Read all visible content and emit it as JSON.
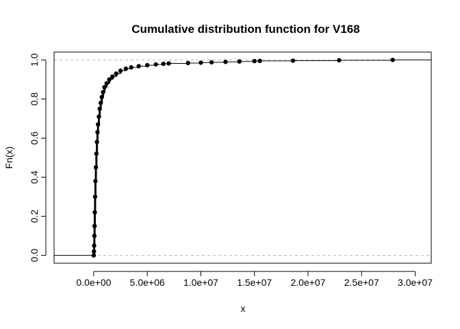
{
  "chart_data": {
    "type": "scatter",
    "subtype": "ecdf-step",
    "title": "Cumulative distribution function for V168",
    "xlabel": "x",
    "ylabel": "Fn(x)",
    "xlim": [
      -3700000,
      31500000
    ],
    "ylim": [
      -0.04,
      1.04
    ],
    "xticks": [
      0,
      5000000,
      10000000,
      15000000,
      20000000,
      25000000,
      30000000
    ],
    "xtick_labels": [
      "0.0e+00",
      "5.0e+06",
      "1.0e+07",
      "1.5e+07",
      "2.0e+07",
      "2.5e+07",
      "3.0e+07"
    ],
    "yticks": [
      0.0,
      0.2,
      0.4,
      0.6,
      0.8,
      1.0
    ],
    "ytick_labels": [
      "0.0",
      "0.2",
      "0.4",
      "0.6",
      "0.8",
      "1.0"
    ],
    "reference_lines": [
      0,
      1
    ],
    "points": [
      [
        0,
        0.0
      ],
      [
        20000,
        0.02
      ],
      [
        40000,
        0.05
      ],
      [
        60000,
        0.1
      ],
      [
        80000,
        0.15
      ],
      [
        100000,
        0.22
      ],
      [
        130000,
        0.3
      ],
      [
        160000,
        0.38
      ],
      [
        200000,
        0.45
      ],
      [
        250000,
        0.52
      ],
      [
        300000,
        0.58
      ],
      [
        350000,
        0.63
      ],
      [
        400000,
        0.67
      ],
      [
        480000,
        0.71
      ],
      [
        560000,
        0.75
      ],
      [
        650000,
        0.78
      ],
      [
        750000,
        0.81
      ],
      [
        870000,
        0.835
      ],
      [
        1000000,
        0.86
      ],
      [
        1200000,
        0.88
      ],
      [
        1450000,
        0.9
      ],
      [
        1750000,
        0.915
      ],
      [
        2100000,
        0.93
      ],
      [
        2500000,
        0.945
      ],
      [
        3000000,
        0.955
      ],
      [
        3500000,
        0.962
      ],
      [
        4200000,
        0.968
      ],
      [
        5000000,
        0.973
      ],
      [
        5800000,
        0.977
      ],
      [
        6500000,
        0.98
      ],
      [
        7000000,
        0.982
      ],
      [
        8800000,
        0.984
      ],
      [
        10000000,
        0.986
      ],
      [
        11000000,
        0.988
      ],
      [
        12300000,
        0.99
      ],
      [
        13600000,
        0.992
      ],
      [
        15000000,
        0.994
      ],
      [
        15500000,
        0.995
      ],
      [
        18600000,
        0.996
      ],
      [
        22900000,
        0.998
      ],
      [
        27900000,
        1.0
      ]
    ]
  }
}
